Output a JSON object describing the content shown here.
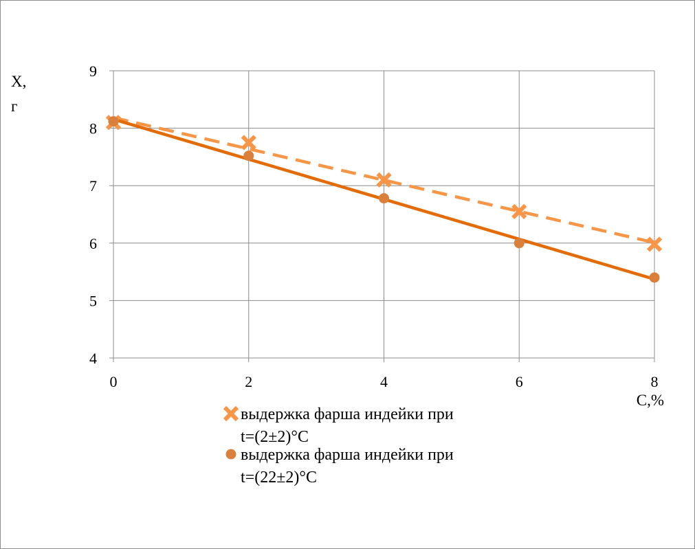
{
  "chart_data": {
    "type": "line",
    "xlabel": "C,%",
    "ylabel_line1": "X,",
    "ylabel_line2": "г",
    "xlim": [
      0,
      8
    ],
    "ylim": [
      4,
      9
    ],
    "xticks": [
      0,
      2,
      4,
      6,
      8
    ],
    "yticks": [
      4,
      5,
      6,
      7,
      8,
      9
    ],
    "grid": true,
    "legend_position": "bottom",
    "series": [
      {
        "name_line1": "выдержка фарша индейки при",
        "name_line2": "t=(2±2)°C",
        "marker": "x",
        "line_style": "dashed",
        "color": "#F79646",
        "x": [
          0,
          2,
          4,
          6,
          8
        ],
        "y": [
          8.1,
          7.75,
          7.1,
          6.55,
          5.98
        ]
      },
      {
        "name_line1": "выдержка фарша индейки при",
        "name_line2": "t=(22±2)°C",
        "marker": "circle",
        "line_style": "solid",
        "color": "#E36C09",
        "marker_color": "#D9803C",
        "x": [
          0,
          2,
          4,
          6,
          8
        ],
        "y": [
          8.12,
          7.52,
          6.78,
          6.0,
          5.4
        ]
      }
    ]
  }
}
